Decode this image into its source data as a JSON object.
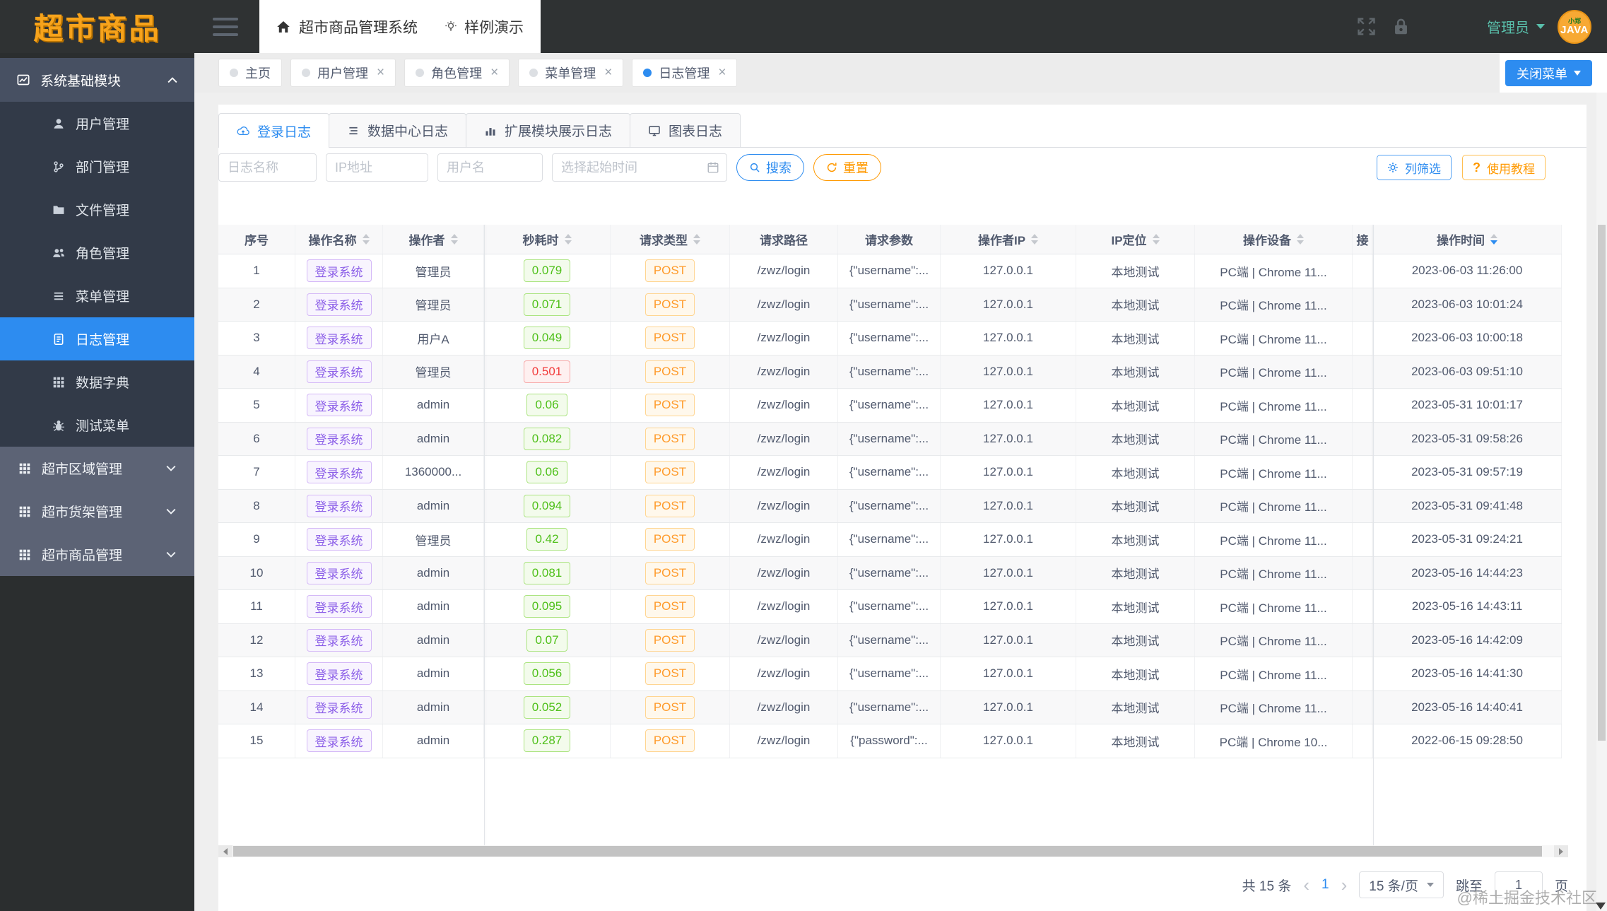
{
  "brand": {
    "logo_text": "超市商品"
  },
  "topbar": {
    "title": "超市商品管理系统",
    "demo": "样例演示",
    "user": "管理员",
    "avatar_top": "小郑",
    "avatar_main": "JAVA"
  },
  "close_menu_label": "关闭菜单",
  "chips": [
    {
      "id": "home",
      "label": "主页",
      "closable": false,
      "active": false
    },
    {
      "id": "user-mgmt",
      "label": "用户管理",
      "closable": true,
      "active": false
    },
    {
      "id": "role-mgmt",
      "label": "角色管理",
      "closable": true,
      "active": false
    },
    {
      "id": "menu-mgmt",
      "label": "菜单管理",
      "closable": true,
      "active": false
    },
    {
      "id": "log-mgmt",
      "label": "日志管理",
      "closable": true,
      "active": true
    }
  ],
  "sidebar": {
    "section": {
      "label": "系统基础模块",
      "icon": "chart-icon",
      "expanded": true
    },
    "items": [
      {
        "id": "user-mgmt",
        "label": "用户管理",
        "icon": "user-icon",
        "active": false
      },
      {
        "id": "dept-mgmt",
        "label": "部门管理",
        "icon": "dept-icon",
        "active": false
      },
      {
        "id": "file-mgmt",
        "label": "文件管理",
        "icon": "folder-icon",
        "active": false
      },
      {
        "id": "role-mgmt",
        "label": "角色管理",
        "icon": "users-icon",
        "active": false
      },
      {
        "id": "menu-mgmt",
        "label": "菜单管理",
        "icon": "menu-list-icon",
        "active": false
      },
      {
        "id": "log-mgmt",
        "label": "日志管理",
        "icon": "log-icon",
        "active": true
      },
      {
        "id": "data-dict",
        "label": "数据字典",
        "icon": "dict-icon",
        "active": false
      },
      {
        "id": "test-menu",
        "label": "测试菜单",
        "icon": "bug-icon",
        "active": false
      }
    ],
    "groups": [
      {
        "id": "market-area",
        "label": "超市区域管理",
        "icon": "grid-icon"
      },
      {
        "id": "market-shelf",
        "label": "超市货架管理",
        "icon": "grid-icon"
      },
      {
        "id": "market-goods",
        "label": "超市商品管理",
        "icon": "grid-icon"
      }
    ]
  },
  "log_tabs": [
    {
      "id": "login-log",
      "label": "登录日志",
      "icon": "cloud-upload-icon",
      "active": true
    },
    {
      "id": "data-center-log",
      "label": "数据中心日志",
      "icon": "rows-icon",
      "active": false
    },
    {
      "id": "ext-module-log",
      "label": "扩展模块展示日志",
      "icon": "bar-chart-icon",
      "active": false
    },
    {
      "id": "chart-log",
      "label": "图表日志",
      "icon": "monitor-icon",
      "active": false
    }
  ],
  "filters": {
    "inputs": [
      {
        "placeholder": "日志名称"
      },
      {
        "placeholder": "IP地址"
      },
      {
        "placeholder": "用户名"
      },
      {
        "placeholder": "选择起始时间"
      }
    ],
    "search": "搜索",
    "reset": "重置",
    "column_filter": "列筛选",
    "tutorial": "使用教程"
  },
  "table": {
    "columns": [
      {
        "key": "index",
        "label": "序号",
        "sortable": false
      },
      {
        "key": "action",
        "label": "操作名称",
        "sortable": true
      },
      {
        "key": "operator",
        "label": "操作者",
        "sortable": true
      },
      {
        "key": "seconds",
        "label": "秒耗时",
        "sortable": true
      },
      {
        "key": "method",
        "label": "请求类型",
        "sortable": true
      },
      {
        "key": "path",
        "label": "请求路径",
        "sortable": false
      },
      {
        "key": "params",
        "label": "请求参数",
        "sortable": false
      },
      {
        "key": "ip",
        "label": "操作者IP",
        "sortable": true
      },
      {
        "key": "location",
        "label": "IP定位",
        "sortable": true
      },
      {
        "key": "device",
        "label": "操作设备",
        "sortable": true
      },
      {
        "key": "trunc",
        "label": "接",
        "sortable": false
      },
      {
        "key": "time",
        "label": "操作时间",
        "sortable": true,
        "sorted": "desc"
      }
    ],
    "rows": [
      {
        "index": "1",
        "action": "登录系统",
        "operator": "管理员",
        "seconds": "0.079",
        "seconds_state": "ok",
        "method": "POST",
        "path": "/zwz/login",
        "params": "{\"username\":...",
        "ip": "127.0.0.1",
        "location": "本地测试",
        "device": "PC端 | Chrome 11...",
        "time": "2023-06-03 11:26:00"
      },
      {
        "index": "2",
        "action": "登录系统",
        "operator": "管理员",
        "seconds": "0.071",
        "seconds_state": "ok",
        "method": "POST",
        "path": "/zwz/login",
        "params": "{\"username\":...",
        "ip": "127.0.0.1",
        "location": "本地测试",
        "device": "PC端 | Chrome 11...",
        "time": "2023-06-03 10:01:24"
      },
      {
        "index": "3",
        "action": "登录系统",
        "operator": "用户A",
        "seconds": "0.049",
        "seconds_state": "ok",
        "method": "POST",
        "path": "/zwz/login",
        "params": "{\"username\":...",
        "ip": "127.0.0.1",
        "location": "本地测试",
        "device": "PC端 | Chrome 11...",
        "time": "2023-06-03 10:00:18"
      },
      {
        "index": "4",
        "action": "登录系统",
        "operator": "管理员",
        "seconds": "0.501",
        "seconds_state": "slow",
        "method": "POST",
        "path": "/zwz/login",
        "params": "{\"username\":...",
        "ip": "127.0.0.1",
        "location": "本地测试",
        "device": "PC端 | Chrome 11...",
        "time": "2023-06-03 09:51:10"
      },
      {
        "index": "5",
        "action": "登录系统",
        "operator": "admin",
        "seconds": "0.06",
        "seconds_state": "ok",
        "method": "POST",
        "path": "/zwz/login",
        "params": "{\"username\":...",
        "ip": "127.0.0.1",
        "location": "本地测试",
        "device": "PC端 | Chrome 11...",
        "time": "2023-05-31 10:01:17"
      },
      {
        "index": "6",
        "action": "登录系统",
        "operator": "admin",
        "seconds": "0.082",
        "seconds_state": "ok",
        "method": "POST",
        "path": "/zwz/login",
        "params": "{\"username\":...",
        "ip": "127.0.0.1",
        "location": "本地测试",
        "device": "PC端 | Chrome 11...",
        "time": "2023-05-31 09:58:26"
      },
      {
        "index": "7",
        "action": "登录系统",
        "operator": "1360000...",
        "seconds": "0.06",
        "seconds_state": "ok",
        "method": "POST",
        "path": "/zwz/login",
        "params": "{\"username\":...",
        "ip": "127.0.0.1",
        "location": "本地测试",
        "device": "PC端 | Chrome 11...",
        "time": "2023-05-31 09:57:19"
      },
      {
        "index": "8",
        "action": "登录系统",
        "operator": "admin",
        "seconds": "0.094",
        "seconds_state": "ok",
        "method": "POST",
        "path": "/zwz/login",
        "params": "{\"username\":...",
        "ip": "127.0.0.1",
        "location": "本地测试",
        "device": "PC端 | Chrome 11...",
        "time": "2023-05-31 09:41:48"
      },
      {
        "index": "9",
        "action": "登录系统",
        "operator": "管理员",
        "seconds": "0.42",
        "seconds_state": "ok",
        "method": "POST",
        "path": "/zwz/login",
        "params": "{\"username\":...",
        "ip": "127.0.0.1",
        "location": "本地测试",
        "device": "PC端 | Chrome 11...",
        "time": "2023-05-31 09:24:21"
      },
      {
        "index": "10",
        "action": "登录系统",
        "operator": "admin",
        "seconds": "0.081",
        "seconds_state": "ok",
        "method": "POST",
        "path": "/zwz/login",
        "params": "{\"username\":...",
        "ip": "127.0.0.1",
        "location": "本地测试",
        "device": "PC端 | Chrome 11...",
        "time": "2023-05-16 14:44:23"
      },
      {
        "index": "11",
        "action": "登录系统",
        "operator": "admin",
        "seconds": "0.095",
        "seconds_state": "ok",
        "method": "POST",
        "path": "/zwz/login",
        "params": "{\"username\":...",
        "ip": "127.0.0.1",
        "location": "本地测试",
        "device": "PC端 | Chrome 11...",
        "time": "2023-05-16 14:43:11"
      },
      {
        "index": "12",
        "action": "登录系统",
        "operator": "admin",
        "seconds": "0.07",
        "seconds_state": "ok",
        "method": "POST",
        "path": "/zwz/login",
        "params": "{\"username\":...",
        "ip": "127.0.0.1",
        "location": "本地测试",
        "device": "PC端 | Chrome 11...",
        "time": "2023-05-16 14:42:09"
      },
      {
        "index": "13",
        "action": "登录系统",
        "operator": "admin",
        "seconds": "0.056",
        "seconds_state": "ok",
        "method": "POST",
        "path": "/zwz/login",
        "params": "{\"username\":...",
        "ip": "127.0.0.1",
        "location": "本地测试",
        "device": "PC端 | Chrome 11...",
        "time": "2023-05-16 14:41:30"
      },
      {
        "index": "14",
        "action": "登录系统",
        "operator": "admin",
        "seconds": "0.052",
        "seconds_state": "ok",
        "method": "POST",
        "path": "/zwz/login",
        "params": "{\"username\":...",
        "ip": "127.0.0.1",
        "location": "本地测试",
        "device": "PC端 | Chrome 11...",
        "time": "2023-05-16 14:40:41"
      },
      {
        "index": "15",
        "action": "登录系统",
        "operator": "admin",
        "seconds": "0.287",
        "seconds_state": "ok",
        "method": "POST",
        "path": "/zwz/login",
        "params": "{\"password\":...",
        "ip": "127.0.0.1",
        "location": "本地测试",
        "device": "PC端 | Chrome 10...",
        "time": "2022-06-15 09:28:50"
      }
    ]
  },
  "pagination": {
    "total": "共 15 条",
    "prev": "‹",
    "page": "1",
    "next": "›",
    "page_size": "15 条/页",
    "jump_label": "跳至",
    "jump_value": "1",
    "page_suffix": "页"
  },
  "watermark": "@稀土掘金技术社区"
}
